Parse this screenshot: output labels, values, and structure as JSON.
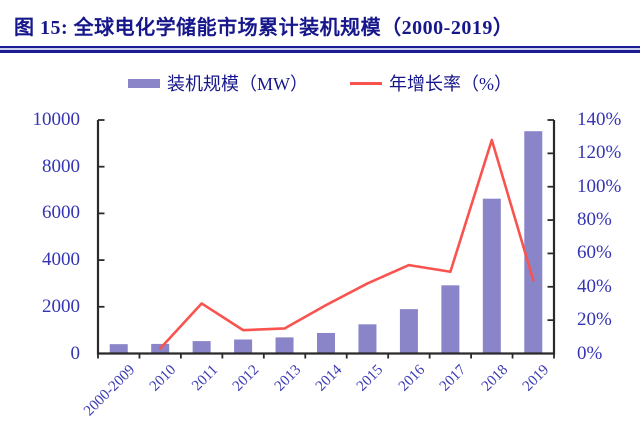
{
  "title": "图 15: 全球电化学储能市场累计装机规模（2000-2019）",
  "legend": [
    {
      "label": "装机规模（MW）",
      "type": "bar",
      "color": "#8a84c8"
    },
    {
      "label": "年增长率（%）",
      "type": "line",
      "color": "#f9534f"
    }
  ],
  "colors": {
    "title_navy": "#17178c",
    "axis_label_blue": "#3434b4",
    "bar_purple": "#8a84c8",
    "line_red": "#f9534f",
    "spine_black": "#2a2a2a",
    "rule_navy": "#1c1c96"
  },
  "chart_data": {
    "type": "bar",
    "title": "全球电化学储能市场累计装机规模（2000-2019）",
    "categories": [
      "2000-2009",
      "2010",
      "2011",
      "2012",
      "2013",
      "2014",
      "2015",
      "2016",
      "2017",
      "2018",
      "2019"
    ],
    "series": [
      {
        "name": "装机规模（MW）",
        "type": "bar",
        "axis": "left",
        "color": "#8a84c8",
        "values": [
          400,
          410,
          530,
          600,
          690,
          880,
          1250,
          1900,
          2920,
          6630,
          9520
        ]
      },
      {
        "name": "年增长率（%）",
        "type": "line",
        "axis": "right",
        "color": "#f9534f",
        "values": [
          null,
          3,
          30,
          14,
          15,
          29,
          42,
          53,
          49,
          128,
          44
        ]
      }
    ],
    "left_axis": {
      "min": 0,
      "max": 10000,
      "step": 2000,
      "tick_labels": [
        "10000",
        "8000",
        "6000",
        "4000",
        "2000",
        "0"
      ]
    },
    "right_axis": {
      "min": 0,
      "max": 140,
      "step": 20,
      "tick_labels": [
        "140%",
        "120%",
        "100%",
        "80%",
        "60%",
        "40%",
        "20%",
        "0%"
      ]
    },
    "grid": false,
    "legend_position": "top-center",
    "xlabel_rotation_deg": -45
  }
}
